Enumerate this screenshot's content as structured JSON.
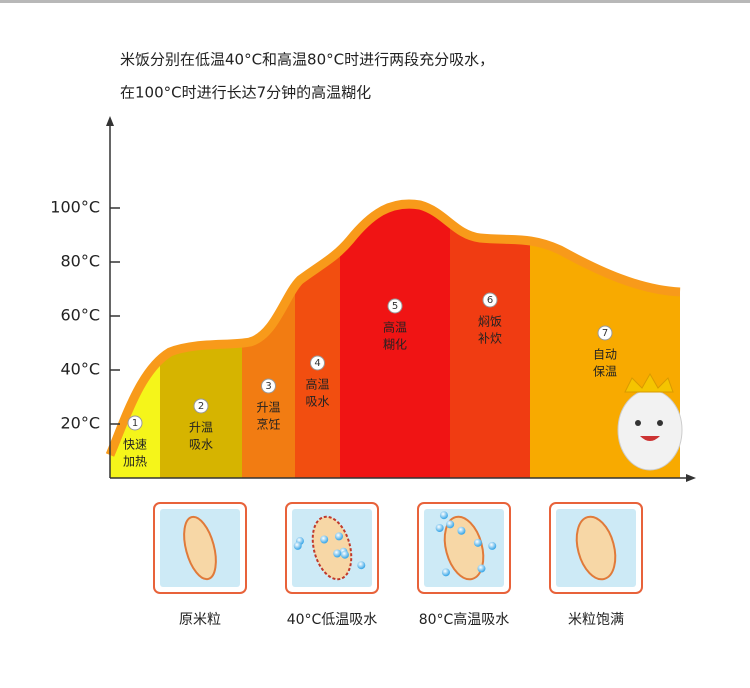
{
  "header": {
    "lines": [
      "米饭分别在低温40°C和高温80°C时进行两段充分吸水，",
      "在100°C时进行长达7分钟的高温糊化"
    ]
  },
  "y_axis": {
    "ticks": [
      "100°C",
      "80°C",
      "60°C",
      "40°C",
      "20°C"
    ]
  },
  "stages": [
    {
      "number": "1",
      "lines": [
        "快速",
        "加热"
      ]
    },
    {
      "number": "2",
      "lines": [
        "升温",
        "吸水"
      ]
    },
    {
      "number": "3",
      "lines": [
        "升温",
        "烹饪"
      ]
    },
    {
      "number": "4",
      "lines": [
        "高温",
        "吸水"
      ]
    },
    {
      "number": "5",
      "lines": [
        "高温",
        "糊化"
      ]
    },
    {
      "number": "6",
      "lines": [
        "焖饭",
        "补炊"
      ]
    },
    {
      "number": "7",
      "lines": [
        "自动",
        "保温"
      ]
    }
  ],
  "rice": [
    {
      "caption": "原米粒"
    },
    {
      "caption": "40°C低温吸水"
    },
    {
      "caption": "80°C高温吸水"
    },
    {
      "caption": "米粒饱满"
    }
  ]
}
